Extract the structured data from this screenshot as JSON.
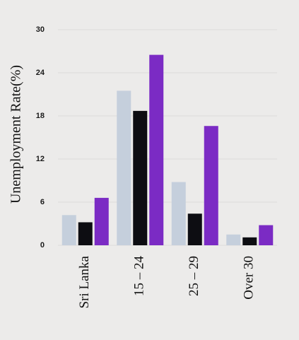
{
  "chart_data": {
    "type": "bar",
    "ylabel": "Unemployment Rate(%)",
    "categories": [
      "Sri Lanka",
      "15 – 24",
      "25 – 29",
      "Over 30"
    ],
    "ylim": [
      0,
      30
    ],
    "yticks": [
      "0",
      "6",
      "12",
      "18",
      "24",
      "30"
    ],
    "grid": true,
    "series": [
      {
        "color": "#c5cfdc",
        "values": [
          4.2,
          21.5,
          8.8,
          1.5
        ]
      },
      {
        "color": "#0d0d12",
        "values": [
          3.2,
          18.7,
          4.4,
          1.1
        ]
      },
      {
        "color": "#7b2bc4",
        "values": [
          6.6,
          26.5,
          16.6,
          2.8
        ]
      }
    ]
  }
}
